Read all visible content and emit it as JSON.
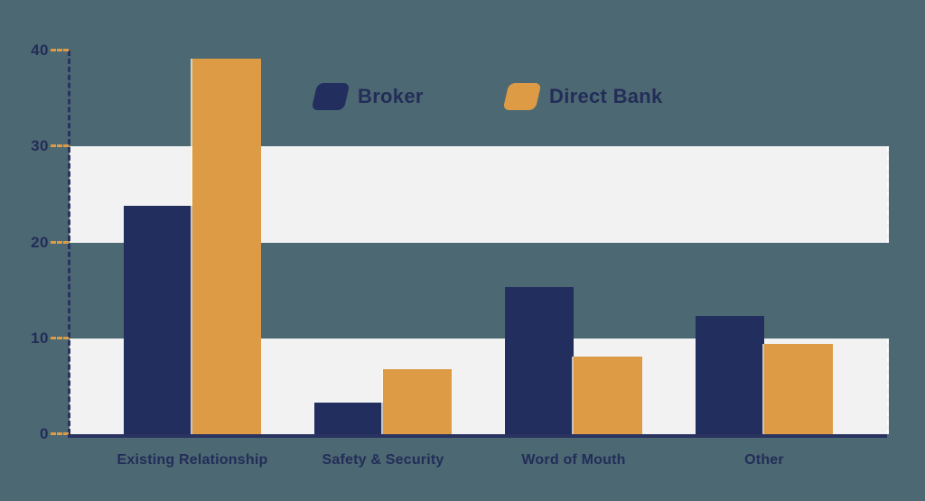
{
  "chart_data": {
    "type": "bar",
    "title": "",
    "xlabel": "",
    "ylabel": "",
    "categories": [
      "Existing Relationship",
      "Safety & Security",
      "Word of Mouth",
      "Other"
    ],
    "series": [
      {
        "name": "Broker",
        "color": "#222e5e",
        "values": [
          23.8,
          3.3,
          15.3,
          12.3
        ]
      },
      {
        "name": "Direct Bank",
        "color": "#de9b45",
        "values": [
          39.2,
          6.8,
          8.1,
          9.4
        ]
      }
    ],
    "ylim": [
      0,
      40
    ],
    "yticks": [
      0,
      10,
      20,
      30,
      40
    ],
    "grid_bands": [
      [
        0,
        10
      ],
      [
        20,
        30
      ]
    ],
    "grid": "alternating horizontal bands",
    "legend_position": "top-center"
  },
  "legend": {
    "items": [
      {
        "label": "Broker",
        "color": "#222e5e"
      },
      {
        "label": "Direct Bank",
        "color": "#de9b45"
      }
    ]
  },
  "colors": {
    "background": "#4c6872",
    "band": "#f2f2f3",
    "navy": "#222e5e",
    "orange": "#de9b45",
    "axis": "#2a3360",
    "tick": "#de9b45",
    "text": "#232d58"
  }
}
